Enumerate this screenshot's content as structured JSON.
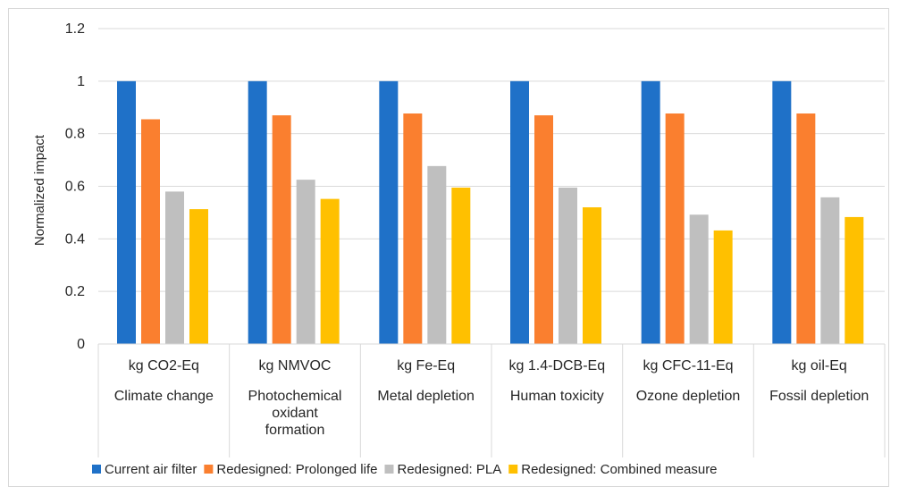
{
  "chart_data": {
    "type": "bar",
    "title": "",
    "ylabel": "Normalized impact",
    "xlabel": "",
    "ylim": [
      0,
      1.2
    ],
    "yticks": [
      0,
      0.2,
      0.4,
      0.6,
      0.8,
      1,
      1.2
    ],
    "ytick_labels": [
      "0",
      "0.2",
      "0.4",
      "0.6",
      "0.8",
      "1",
      "1.2"
    ],
    "grid": true,
    "legend_position": "bottom",
    "categories": [
      {
        "unit": "kg CO2-Eq",
        "name_lines": [
          "Climate change"
        ]
      },
      {
        "unit": "kg NMVOC",
        "name_lines": [
          "Photochemical",
          "oxidant",
          "formation"
        ]
      },
      {
        "unit": "kg Fe-Eq",
        "name_lines": [
          "Metal depletion"
        ]
      },
      {
        "unit": "kg 1.4-DCB-Eq",
        "name_lines": [
          "Human toxicity"
        ]
      },
      {
        "unit": "kg CFC-11-Eq",
        "name_lines": [
          "Ozone depletion"
        ]
      },
      {
        "unit": "kg oil-Eq",
        "name_lines": [
          "Fossil depletion"
        ]
      }
    ],
    "series": [
      {
        "name": "Current air filter",
        "color": "#1f71c8",
        "values": [
          1,
          1,
          1,
          1,
          1,
          1
        ]
      },
      {
        "name": "Redesigned: Prolonged life",
        "color": "#fa7f2f",
        "values": [
          0.855,
          0.87,
          0.877,
          0.87,
          0.877,
          0.877
        ]
      },
      {
        "name": "Redesigned: PLA",
        "color": "#bfbfbf",
        "values": [
          0.58,
          0.625,
          0.677,
          0.595,
          0.492,
          0.558
        ]
      },
      {
        "name": "Redesigned: Combined measure",
        "color": "#ffc000",
        "values": [
          0.513,
          0.552,
          0.595,
          0.52,
          0.432,
          0.483
        ]
      }
    ]
  }
}
